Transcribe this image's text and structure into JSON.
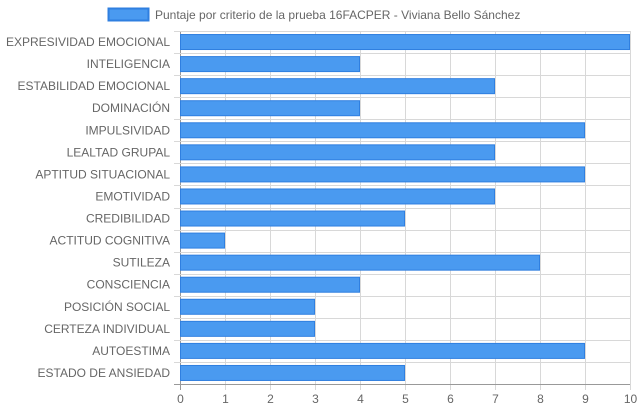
{
  "chart_data": {
    "type": "bar",
    "orientation": "horizontal",
    "categories": [
      "EXPRESIVIDAD EMOCIONAL",
      "INTELIGENCIA",
      "ESTABILIDAD EMOCIONAL",
      "DOMINACIÓN",
      "IMPULSIVIDAD",
      "LEALTAD GRUPAL",
      "APTITUD SITUACIONAL",
      "EMOTIVIDAD",
      "CREDIBILIDAD",
      "ACTITUD COGNITIVA",
      "SUTILEZA",
      "CONSCIENCIA",
      "POSICIÓN SOCIAL",
      "CERTEZA INDIVIDUAL",
      "AUTOESTIMA",
      "ESTADO DE ANSIEDAD"
    ],
    "series": [
      {
        "name": "Puntaje por criterio de la prueba 16FACPER - Viviana Bello Sánchez",
        "values": [
          10,
          4,
          7,
          4,
          9,
          7,
          9,
          7,
          5,
          1,
          8,
          4,
          3,
          3,
          9,
          5
        ],
        "color": "#4a9af0",
        "border_color": "#2f7fe0"
      }
    ],
    "x_ticks": [
      "0",
      "1",
      "2",
      "3",
      "4",
      "5",
      "6",
      "7",
      "8",
      "9",
      "10"
    ],
    "xlim": [
      0,
      10
    ],
    "grid": true,
    "grid_color": "#d8d8d8",
    "axis_color": "#999999",
    "legend_position": "top-center"
  }
}
